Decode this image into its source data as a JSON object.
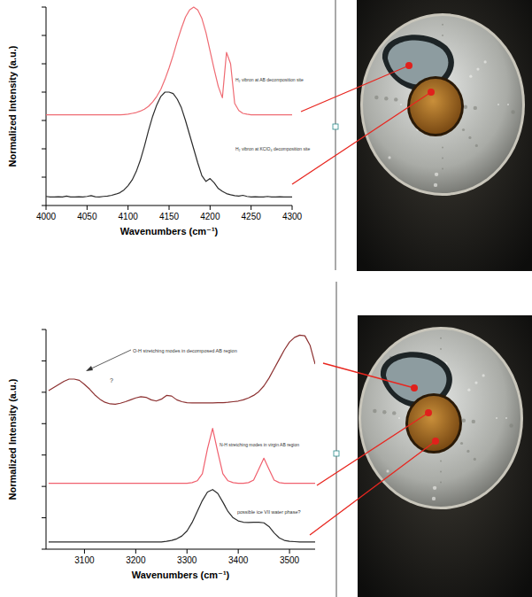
{
  "chart_data": [
    {
      "type": "line",
      "x_label": "Wavenumbers (cm⁻¹)",
      "y_label": "Normalized Intensity (a.u.)",
      "tick_labels": "x",
      "xlim": [
        4000,
        4300
      ],
      "ylim": [
        0,
        7
      ],
      "xticks": [
        4000,
        4050,
        4100,
        4150,
        4200,
        4250,
        4300
      ],
      "yticks": [
        0,
        1,
        2,
        3,
        4,
        5,
        6,
        7
      ],
      "x": [
        4000,
        4005,
        4010,
        4015,
        4020,
        4025,
        4030,
        4035,
        4040,
        4045,
        4050,
        4055,
        4060,
        4065,
        4070,
        4075,
        4080,
        4085,
        4090,
        4095,
        4100,
        4105,
        4110,
        4115,
        4120,
        4125,
        4130,
        4135,
        4140,
        4145,
        4150,
        4155,
        4160,
        4165,
        4170,
        4175,
        4180,
        4185,
        4190,
        4195,
        4200,
        4205,
        4210,
        4215,
        4220,
        4225,
        4230,
        4235,
        4240,
        4245,
        4250,
        4255,
        4260,
        4265,
        4270,
        4275,
        4280,
        4285,
        4290,
        4295,
        4300
      ],
      "series": [
        {
          "name": "H₂ vibron at AB decomposition site",
          "color": "#ef6b73",
          "values": [
            3.2,
            3.2,
            3.2,
            3.2,
            3.2,
            3.2,
            3.2,
            3.2,
            3.2,
            3.2,
            3.2,
            3.2,
            3.2,
            3.2,
            3.2,
            3.2,
            3.2,
            3.2,
            3.2,
            3.21,
            3.22,
            3.25,
            3.28,
            3.33,
            3.4,
            3.5,
            3.65,
            3.85,
            4.1,
            4.45,
            4.85,
            5.3,
            5.8,
            6.25,
            6.65,
            6.9,
            7.0,
            6.9,
            6.6,
            6.1,
            5.45,
            4.8,
            4.2,
            3.8,
            5.4,
            5.0,
            3.6,
            3.35,
            3.25,
            3.22,
            3.2,
            3.2,
            3.2,
            3.2,
            3.2,
            3.2,
            3.2,
            3.2,
            3.2,
            3.2,
            3.2
          ]
        },
        {
          "name": "H₂ vibron at KClO₄ decomposition site",
          "color": "#2b2b2b",
          "values": [
            0.32,
            0.3,
            0.3,
            0.31,
            0.3,
            0.33,
            0.3,
            0.3,
            0.31,
            0.3,
            0.32,
            0.35,
            0.31,
            0.3,
            0.32,
            0.33,
            0.36,
            0.4,
            0.45,
            0.55,
            0.7,
            0.9,
            1.2,
            1.6,
            2.1,
            2.65,
            3.15,
            3.55,
            3.85,
            4.0,
            4.0,
            3.95,
            3.75,
            3.45,
            3.0,
            2.5,
            2.0,
            1.5,
            1.05,
            0.85,
            0.95,
            0.8,
            0.6,
            0.5,
            0.42,
            0.38,
            0.35,
            0.33,
            0.36,
            0.32,
            0.3,
            0.31,
            0.3,
            0.3,
            0.32,
            0.3,
            0.3,
            0.31,
            0.3,
            0.3,
            0.3
          ]
        }
      ]
    },
    {
      "type": "line",
      "x_label": "Wavenumbers (cm⁻¹)",
      "y_label": "Normalized Intensity (a.u.)",
      "tick_labels": "x",
      "xlim": [
        3025,
        3550
      ],
      "ylim": [
        0,
        7
      ],
      "xticks": [
        3100,
        3200,
        3300,
        3400,
        3500
      ],
      "yticks": [
        0,
        1,
        2,
        3,
        4,
        5,
        6,
        7
      ],
      "x": [
        3030,
        3040,
        3050,
        3060,
        3070,
        3080,
        3090,
        3100,
        3110,
        3120,
        3130,
        3140,
        3150,
        3160,
        3170,
        3180,
        3190,
        3200,
        3210,
        3220,
        3230,
        3240,
        3250,
        3260,
        3270,
        3280,
        3290,
        3300,
        3310,
        3320,
        3330,
        3340,
        3350,
        3360,
        3370,
        3380,
        3390,
        3400,
        3410,
        3420,
        3430,
        3440,
        3450,
        3460,
        3470,
        3480,
        3490,
        3500,
        3510,
        3520,
        3530,
        3540,
        3550
      ],
      "annotations": [
        "?"
      ],
      "series": [
        {
          "name": "O-H stretching modes in decomposed AB region",
          "color": "#8c3030",
          "values": [
            5.05,
            5.15,
            5.25,
            5.35,
            5.42,
            5.42,
            5.38,
            5.25,
            5.1,
            4.92,
            4.78,
            4.68,
            4.63,
            4.62,
            4.65,
            4.7,
            4.76,
            4.82,
            4.86,
            4.84,
            4.76,
            4.72,
            4.78,
            4.9,
            4.88,
            4.76,
            4.7,
            4.67,
            4.66,
            4.66,
            4.66,
            4.66,
            4.66,
            4.67,
            4.67,
            4.68,
            4.7,
            4.72,
            4.76,
            4.82,
            4.9,
            5.02,
            5.2,
            5.45,
            5.75,
            6.05,
            6.35,
            6.6,
            6.75,
            6.82,
            6.8,
            6.5,
            5.9
          ]
        },
        {
          "name": "N-H stretching modes in virgin AB region",
          "color": "#f0606e",
          "values": [
            2.1,
            2.1,
            2.1,
            2.1,
            2.1,
            2.1,
            2.1,
            2.1,
            2.1,
            2.1,
            2.1,
            2.1,
            2.1,
            2.1,
            2.1,
            2.1,
            2.1,
            2.1,
            2.1,
            2.1,
            2.1,
            2.1,
            2.1,
            2.1,
            2.1,
            2.1,
            2.1,
            2.1,
            2.12,
            2.18,
            2.4,
            3.2,
            3.85,
            3.1,
            2.4,
            2.18,
            2.12,
            2.1,
            2.1,
            2.12,
            2.2,
            2.55,
            2.9,
            2.55,
            2.2,
            2.12,
            2.1,
            2.1,
            2.1,
            2.1,
            2.1,
            2.1,
            2.1
          ]
        },
        {
          "name": "possible ice VII water phase?",
          "color": "#2b2b2b",
          "values": [
            0.23,
            0.23,
            0.23,
            0.23,
            0.23,
            0.23,
            0.23,
            0.23,
            0.23,
            0.23,
            0.23,
            0.23,
            0.23,
            0.23,
            0.23,
            0.23,
            0.23,
            0.23,
            0.23,
            0.23,
            0.23,
            0.23,
            0.23,
            0.25,
            0.28,
            0.33,
            0.42,
            0.58,
            0.85,
            1.2,
            1.55,
            1.82,
            1.9,
            1.78,
            1.5,
            1.2,
            1.0,
            0.9,
            0.86,
            0.85,
            0.86,
            0.86,
            0.84,
            0.72,
            0.52,
            0.36,
            0.28,
            0.25,
            0.24,
            0.23,
            0.23,
            0.23,
            0.23
          ]
        }
      ]
    }
  ]
}
